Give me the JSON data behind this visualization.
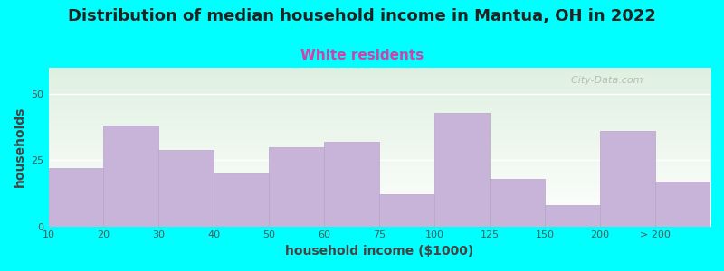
{
  "title": "Distribution of median household income in Mantua, OH in 2022",
  "subtitle": "White residents",
  "xlabel": "household income ($1000)",
  "ylabel": "households",
  "background_color": "#00ffff",
  "plot_bg_top": "#dff0e0",
  "plot_bg_bottom": "#ffffff",
  "bar_color": "#c8b4d8",
  "bar_edge_color": "#b8a4c8",
  "categories": [
    "10",
    "20",
    "30",
    "40",
    "50",
    "60",
    "75",
    "100",
    "125",
    "150",
    "200",
    "> 200"
  ],
  "values": [
    22,
    38,
    29,
    20,
    30,
    32,
    12,
    43,
    18,
    8,
    36,
    17
  ],
  "ylim": [
    0,
    60
  ],
  "yticks": [
    0,
    25,
    50
  ],
  "title_fontsize": 13,
  "subtitle_fontsize": 11,
  "axis_label_fontsize": 10,
  "tick_fontsize": 8,
  "title_color": "#222222",
  "subtitle_color": "#cc44aa",
  "watermark": "  City-Data.com"
}
